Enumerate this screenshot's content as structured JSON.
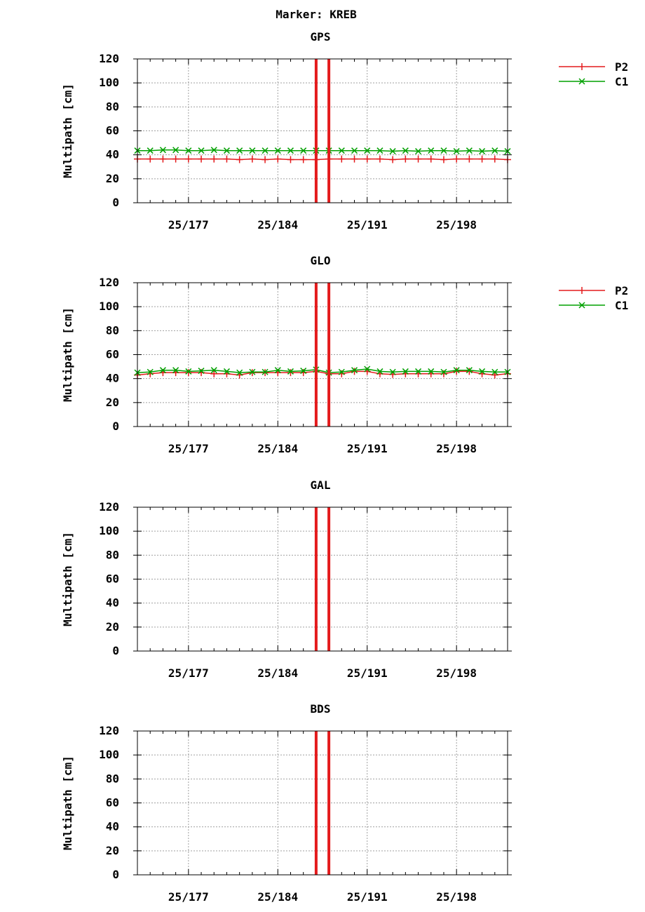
{
  "figure_title": "Marker: KREB",
  "chart_data": [
    {
      "type": "line",
      "title": "GPS",
      "ylabel": "Multipath [cm]",
      "xlabel": "",
      "ylim": [
        0,
        120
      ],
      "yticks": [
        "0",
        "20",
        "40",
        "60",
        "80",
        "100",
        "120"
      ],
      "xticks": [
        {
          "day": 177,
          "label": "25/177"
        },
        {
          "day": 184,
          "label": "25/184"
        },
        {
          "day": 191,
          "label": "25/191"
        },
        {
          "day": 198,
          "label": "25/198"
        }
      ],
      "xlim_days": [
        173.0,
        202.0
      ],
      "grid": true,
      "legend_position": "outside-right",
      "vertical_markers": [
        {
          "day": 187.0,
          "color": "#e41a1c"
        },
        {
          "day": 188.0,
          "color": "#e41a1c"
        }
      ],
      "series": [
        {
          "name": "P2",
          "color": "#e41a1c",
          "marker": "plus",
          "days": [
            173,
            174,
            175,
            176,
            177,
            178,
            179,
            180,
            181,
            182,
            183,
            184,
            185,
            186,
            187,
            188,
            189,
            190,
            191,
            192,
            193,
            194,
            195,
            196,
            197,
            198,
            199,
            200,
            201,
            202
          ],
          "values": [
            36.5,
            36.5,
            36.5,
            36.5,
            36.5,
            36.5,
            36.5,
            36.5,
            36,
            36.5,
            36,
            36.5,
            36,
            36,
            36,
            36.5,
            36.5,
            36.5,
            36.5,
            36.5,
            36,
            36.5,
            36.5,
            36.5,
            36,
            36.5,
            36.5,
            36.5,
            36.5,
            36
          ]
        },
        {
          "name": "C1",
          "color": "#00a000",
          "marker": "x",
          "days": [
            173,
            174,
            175,
            176,
            177,
            178,
            179,
            180,
            181,
            182,
            183,
            184,
            185,
            186,
            187,
            188,
            189,
            190,
            191,
            192,
            193,
            194,
            195,
            196,
            197,
            198,
            199,
            200,
            201,
            202
          ],
          "values": [
            43.5,
            43.5,
            44,
            44,
            43.5,
            43.5,
            44,
            43.5,
            43.5,
            43.5,
            43.5,
            43.5,
            43.5,
            43.5,
            43.5,
            43.5,
            43.5,
            43.5,
            43.5,
            43.5,
            43,
            43.5,
            43,
            43.5,
            43.5,
            43,
            43.5,
            43,
            43.5,
            43
          ]
        }
      ]
    },
    {
      "type": "line",
      "title": "GLO",
      "ylabel": "Multipath [cm]",
      "xlabel": "",
      "ylim": [
        0,
        120
      ],
      "yticks": [
        "0",
        "20",
        "40",
        "60",
        "80",
        "100",
        "120"
      ],
      "xticks": [
        {
          "day": 177,
          "label": "25/177"
        },
        {
          "day": 184,
          "label": "25/184"
        },
        {
          "day": 191,
          "label": "25/191"
        },
        {
          "day": 198,
          "label": "25/198"
        }
      ],
      "xlim_days": [
        173.0,
        202.0
      ],
      "grid": true,
      "legend_position": "outside-right",
      "vertical_markers": [
        {
          "day": 187.0,
          "color": "#e41a1c"
        },
        {
          "day": 188.0,
          "color": "#e41a1c"
        }
      ],
      "series": [
        {
          "name": "P2",
          "color": "#e41a1c",
          "marker": "plus",
          "days": [
            173,
            174,
            175,
            176,
            177,
            178,
            179,
            180,
            181,
            182,
            183,
            184,
            185,
            186,
            187,
            188,
            189,
            190,
            191,
            192,
            193,
            194,
            195,
            196,
            197,
            198,
            199,
            200,
            201,
            202
          ],
          "values": [
            43,
            44,
            45,
            45,
            45,
            45,
            44,
            44,
            43,
            45,
            45,
            45,
            45,
            45,
            46,
            44,
            44,
            46,
            46,
            44,
            43.5,
            44,
            44,
            44,
            44,
            46,
            46,
            44,
            43,
            44
          ]
        },
        {
          "name": "C1",
          "color": "#00a000",
          "marker": "x",
          "days": [
            173,
            174,
            175,
            176,
            177,
            178,
            179,
            180,
            181,
            182,
            183,
            184,
            185,
            186,
            187,
            188,
            189,
            190,
            191,
            192,
            193,
            194,
            195,
            196,
            197,
            198,
            199,
            200,
            201,
            202
          ],
          "values": [
            45,
            45.5,
            47,
            47,
            46,
            46.5,
            47,
            46,
            45,
            45.5,
            45.5,
            47,
            46,
            46.5,
            47.5,
            45,
            45.5,
            47,
            48,
            46,
            45.5,
            46,
            46,
            46,
            45.5,
            47,
            47,
            46,
            45.5,
            45.5
          ]
        }
      ]
    },
    {
      "type": "line",
      "title": "GAL",
      "ylabel": "Multipath [cm]",
      "xlabel": "",
      "ylim": [
        0,
        120
      ],
      "yticks": [
        "0",
        "20",
        "40",
        "60",
        "80",
        "100",
        "120"
      ],
      "xticks": [
        {
          "day": 177,
          "label": "25/177"
        },
        {
          "day": 184,
          "label": "25/184"
        },
        {
          "day": 191,
          "label": "25/191"
        },
        {
          "day": 198,
          "label": "25/198"
        }
      ],
      "xlim_days": [
        173.0,
        202.0
      ],
      "grid": true,
      "legend_position": "none",
      "vertical_markers": [
        {
          "day": 187.0,
          "color": "#e41a1c"
        },
        {
          "day": 188.0,
          "color": "#e41a1c"
        }
      ],
      "series": []
    },
    {
      "type": "line",
      "title": "BDS",
      "ylabel": "Multipath [cm]",
      "xlabel": "",
      "ylim": [
        0,
        120
      ],
      "yticks": [
        "0",
        "20",
        "40",
        "60",
        "80",
        "100",
        "120"
      ],
      "xticks": [
        {
          "day": 177,
          "label": "25/177"
        },
        {
          "day": 184,
          "label": "25/184"
        },
        {
          "day": 191,
          "label": "25/191"
        },
        {
          "day": 198,
          "label": "25/198"
        }
      ],
      "xlim_days": [
        173.0,
        202.0
      ],
      "grid": true,
      "legend_position": "none",
      "vertical_markers": [
        {
          "day": 187.0,
          "color": "#e41a1c"
        },
        {
          "day": 188.0,
          "color": "#e41a1c"
        }
      ],
      "series": []
    }
  ]
}
